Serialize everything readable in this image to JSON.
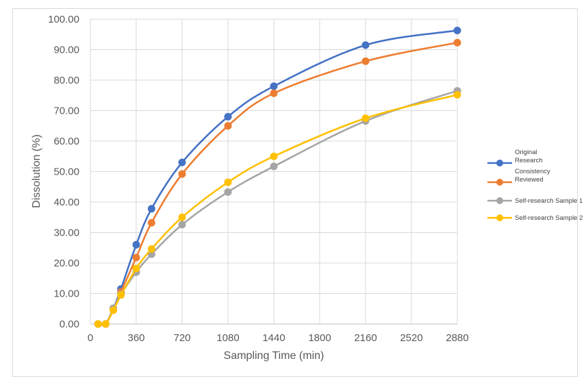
{
  "chart_data": {
    "type": "line",
    "title": "",
    "xlabel": "Sampling Time (min)",
    "ylabel": "Dissolution (%)",
    "xlim": [
      0,
      2880
    ],
    "ylim": [
      0,
      100
    ],
    "x_ticks": [
      "0",
      "360",
      "720",
      "1080",
      "1440",
      "1800",
      "2160",
      "2520",
      "2880"
    ],
    "y_ticks": [
      "0.00",
      "10.00",
      "20.00",
      "30.00",
      "40.00",
      "50.00",
      "60.00",
      "70.00",
      "80.00",
      "90.00",
      "100.00"
    ],
    "grid": true,
    "smooth": true,
    "legend_position": "right",
    "series": [
      {
        "name": "Original Research",
        "legend_lines": [
          "Original",
          "Research"
        ],
        "color": "#4472c4",
        "x": [
          60,
          120,
          180,
          240,
          360,
          480,
          720,
          1080,
          1440,
          2160,
          2880
        ],
        "y": [
          0.0,
          0.0,
          5.0,
          11.5,
          26.0,
          37.8,
          53.0,
          68.0,
          78.0,
          91.5,
          96.3
        ]
      },
      {
        "name": "Consistency Reviewed",
        "legend_lines": [
          "Consistency",
          "Reviewed"
        ],
        "color": "#ed7d31",
        "x": [
          60,
          120,
          180,
          240,
          360,
          480,
          720,
          1080,
          1440,
          2160,
          2880
        ],
        "y": [
          0.0,
          0.0,
          4.8,
          10.5,
          21.8,
          33.2,
          49.2,
          65.0,
          75.7,
          86.2,
          92.3
        ]
      },
      {
        "name": "Self-research Sample 1",
        "legend_lines": [
          "Self-research Sample 1"
        ],
        "color": "#a5a5a5",
        "x": [
          60,
          120,
          180,
          240,
          360,
          480,
          720,
          1080,
          1440,
          2160,
          2880
        ],
        "y": [
          0.0,
          0.0,
          5.2,
          9.8,
          17.0,
          22.9,
          32.6,
          43.3,
          51.7,
          66.6,
          76.5
        ]
      },
      {
        "name": "Self-research Sample 2",
        "legend_lines": [
          "Self-research Sample 2"
        ],
        "color": "#ffc000",
        "x": [
          60,
          120,
          180,
          240,
          360,
          480,
          720,
          1080,
          1440,
          2160,
          2880
        ],
        "y": [
          0.0,
          0.0,
          4.5,
          9.5,
          18.2,
          24.6,
          35.0,
          46.5,
          55.0,
          67.5,
          75.2
        ]
      }
    ]
  }
}
